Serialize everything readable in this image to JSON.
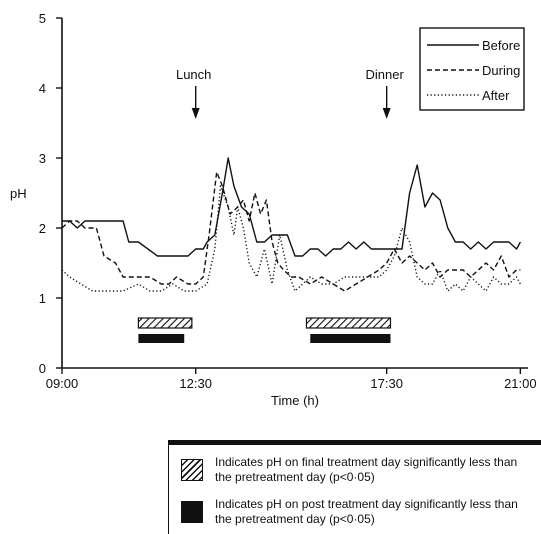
{
  "chart_data": {
    "type": "line",
    "xlabel": "Time (h)",
    "ylabel": "pH",
    "xlim": [
      9,
      21.2
    ],
    "ylim": [
      0,
      5
    ],
    "x_ticks": [
      9,
      12.5,
      17.5,
      21
    ],
    "x_tick_labels": [
      "09:00",
      "12:30",
      "17:30",
      "21:00"
    ],
    "y_ticks": [
      0,
      1,
      2,
      3,
      4,
      5
    ],
    "y_tick_labels": [
      "0",
      "1",
      "2",
      "3",
      "4",
      "5"
    ],
    "grid": false,
    "legend_position": "top-right",
    "series": [
      {
        "name": "Before",
        "style": "solid",
        "x": [
          9.0,
          9.2,
          9.4,
          9.6,
          9.8,
          10.0,
          10.3,
          10.6,
          10.75,
          11.0,
          11.5,
          11.8,
          12.0,
          12.3,
          12.5,
          12.7,
          12.8,
          13.0,
          13.2,
          13.35,
          13.5,
          13.7,
          13.9,
          14.1,
          14.3,
          14.5,
          14.7,
          14.9,
          15.1,
          15.3,
          15.5,
          15.7,
          15.9,
          16.1,
          16.3,
          16.5,
          16.7,
          16.9,
          17.1,
          17.3,
          17.5,
          17.6,
          17.75,
          17.9,
          18.1,
          18.3,
          18.5,
          18.7,
          18.9,
          19.1,
          19.3,
          19.5,
          19.7,
          19.9,
          20.1,
          20.3,
          20.5,
          20.7,
          20.9,
          21.0
        ],
        "y": [
          2.1,
          2.1,
          2.0,
          2.1,
          2.1,
          2.1,
          2.1,
          2.1,
          1.8,
          1.8,
          1.6,
          1.6,
          1.6,
          1.6,
          1.7,
          1.7,
          1.8,
          1.9,
          2.5,
          3.0,
          2.6,
          2.3,
          2.2,
          1.8,
          1.8,
          1.9,
          1.9,
          1.9,
          1.6,
          1.6,
          1.7,
          1.7,
          1.6,
          1.7,
          1.7,
          1.8,
          1.7,
          1.8,
          1.7,
          1.7,
          1.7,
          1.7,
          1.7,
          1.7,
          2.5,
          2.9,
          2.3,
          2.5,
          2.4,
          2.0,
          1.8,
          1.8,
          1.7,
          1.8,
          1.7,
          1.8,
          1.8,
          1.8,
          1.7,
          1.8
        ]
      },
      {
        "name": "During",
        "style": "dashed",
        "x": [
          9.0,
          9.2,
          9.4,
          9.6,
          9.9,
          10.1,
          10.4,
          10.6,
          10.8,
          11.0,
          11.3,
          11.6,
          11.8,
          12.0,
          12.3,
          12.5,
          12.7,
          12.85,
          13.05,
          13.2,
          13.4,
          13.6,
          13.75,
          13.9,
          14.05,
          14.2,
          14.35,
          14.5,
          14.65,
          14.8,
          15.0,
          15.2,
          15.5,
          15.8,
          16.1,
          16.4,
          16.7,
          17.0,
          17.3,
          17.5,
          17.7,
          17.9,
          18.1,
          18.3,
          18.5,
          18.7,
          18.9,
          19.1,
          19.3,
          19.5,
          19.7,
          19.9,
          20.1,
          20.3,
          20.5,
          20.7,
          20.9,
          21.0
        ],
        "y": [
          2.0,
          2.1,
          2.1,
          2.0,
          2.0,
          1.6,
          1.5,
          1.3,
          1.3,
          1.3,
          1.3,
          1.2,
          1.2,
          1.3,
          1.2,
          1.2,
          1.3,
          1.9,
          2.8,
          2.6,
          2.2,
          2.3,
          2.4,
          2.1,
          2.5,
          2.2,
          2.4,
          1.8,
          1.5,
          1.4,
          1.3,
          1.3,
          1.2,
          1.3,
          1.2,
          1.1,
          1.2,
          1.3,
          1.4,
          1.5,
          1.7,
          1.5,
          1.6,
          1.5,
          1.4,
          1.5,
          1.3,
          1.4,
          1.4,
          1.4,
          1.3,
          1.4,
          1.5,
          1.4,
          1.6,
          1.3,
          1.4,
          1.4
        ]
      },
      {
        "name": "After",
        "style": "dotted",
        "x": [
          9.0,
          9.2,
          9.5,
          9.8,
          10.2,
          10.6,
          11.0,
          11.3,
          11.6,
          11.9,
          12.2,
          12.5,
          12.8,
          13.0,
          13.15,
          13.35,
          13.5,
          13.6,
          13.75,
          13.9,
          14.1,
          14.3,
          14.5,
          14.7,
          14.9,
          15.1,
          15.3,
          15.5,
          15.8,
          16.1,
          16.4,
          16.7,
          17.0,
          17.3,
          17.5,
          17.7,
          17.9,
          18.1,
          18.3,
          18.5,
          18.7,
          18.9,
          19.1,
          19.3,
          19.5,
          19.7,
          19.9,
          20.1,
          20.3,
          20.5,
          20.7,
          20.9,
          21.0
        ],
        "y": [
          1.4,
          1.3,
          1.2,
          1.1,
          1.1,
          1.1,
          1.2,
          1.1,
          1.1,
          1.2,
          1.1,
          1.1,
          1.2,
          1.7,
          2.6,
          2.3,
          1.9,
          2.3,
          2.0,
          1.5,
          1.3,
          1.7,
          1.2,
          1.9,
          1.4,
          1.1,
          1.2,
          1.3,
          1.2,
          1.2,
          1.3,
          1.3,
          1.3,
          1.3,
          1.4,
          1.6,
          2.0,
          1.8,
          1.3,
          1.2,
          1.2,
          1.4,
          1.1,
          1.2,
          1.1,
          1.3,
          1.2,
          1.1,
          1.3,
          1.2,
          1.2,
          1.3,
          1.2
        ]
      }
    ],
    "annotations": [
      {
        "text": "Lunch",
        "x": 12.5
      },
      {
        "text": "Dinner",
        "x": 17.5
      }
    ],
    "significance_bars": [
      {
        "kind": "hatched",
        "x0": 11.0,
        "x1": 12.4
      },
      {
        "kind": "solid",
        "x0": 11.0,
        "x1": 12.2
      },
      {
        "kind": "hatched",
        "x0": 15.4,
        "x1": 17.6
      },
      {
        "kind": "solid",
        "x0": 15.5,
        "x1": 17.6
      }
    ]
  },
  "legend": {
    "hatched_text": "Indicates pH on final treatment day significantly less than the pretreatment day (p<0·05)",
    "solid_text": "Indicates pH on post treatment day significantly less than the pretreatment day (p<0·05)"
  }
}
